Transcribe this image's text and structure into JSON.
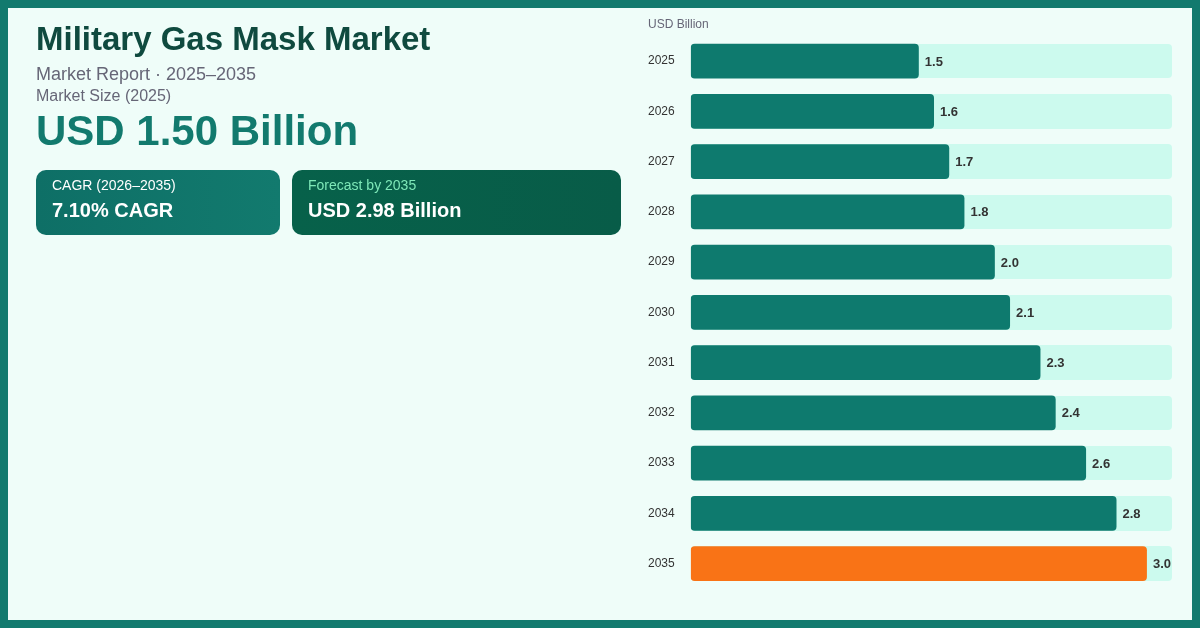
{
  "chart_data": {
    "type": "bar",
    "orientation": "horizontal",
    "title": "Military Gas Mask Market",
    "subtitle": "Market Report  ·  2025–2035",
    "xlabel": "USD Billion",
    "categories": [
      "2025",
      "2026",
      "2027",
      "2028",
      "2029",
      "2030",
      "2031",
      "2032",
      "2033",
      "2034",
      "2035"
    ],
    "values": [
      1.5,
      1.6,
      1.7,
      1.8,
      2.0,
      2.1,
      2.3,
      2.4,
      2.6,
      2.8,
      3.0
    ],
    "colors": [
      "#0e7a6e",
      "#0e7a6e",
      "#0e7a6e",
      "#0e7a6e",
      "#0e7a6e",
      "#0e7a6e",
      "#0e7a6e",
      "#0e7a6e",
      "#0e7a6e",
      "#0e7a6e",
      "#f97316"
    ],
    "value_labels": [
      "1.5",
      "1.6",
      "1.7",
      "1.8",
      "2.0",
      "2.1",
      "2.3",
      "2.4",
      "2.6",
      "2.8",
      "3.0"
    ],
    "legend": false,
    "grid": false,
    "annotations": [
      "Market Size (2025)",
      "USD 1.50 Billion",
      "CAGR (2026–2035)",
      "7.10% CAGR",
      "Forecast by 2035",
      "USD 2.98 Billion"
    ]
  }
}
